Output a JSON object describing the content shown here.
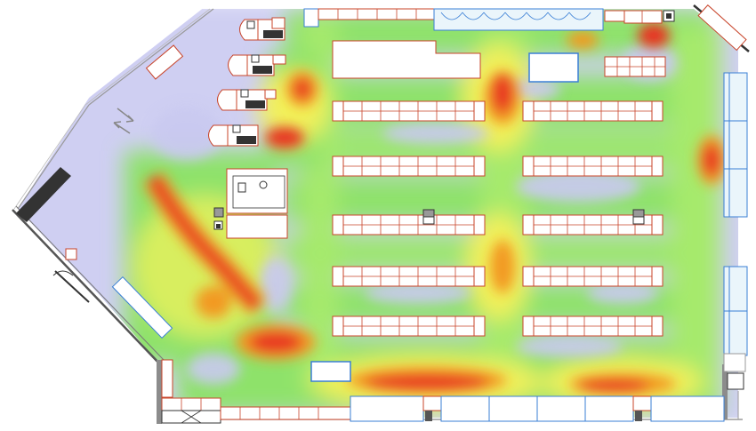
{
  "floorplan": {
    "view": "store-heatmap",
    "heat_colors": {
      "none": "#ffffff",
      "low": "#c9c9f0",
      "mid": "#8ee26a",
      "high": "#f2f05a",
      "peak": "#e83420"
    },
    "fixture_color": "#c8442a",
    "glass_color": "#3a7fd6"
  }
}
